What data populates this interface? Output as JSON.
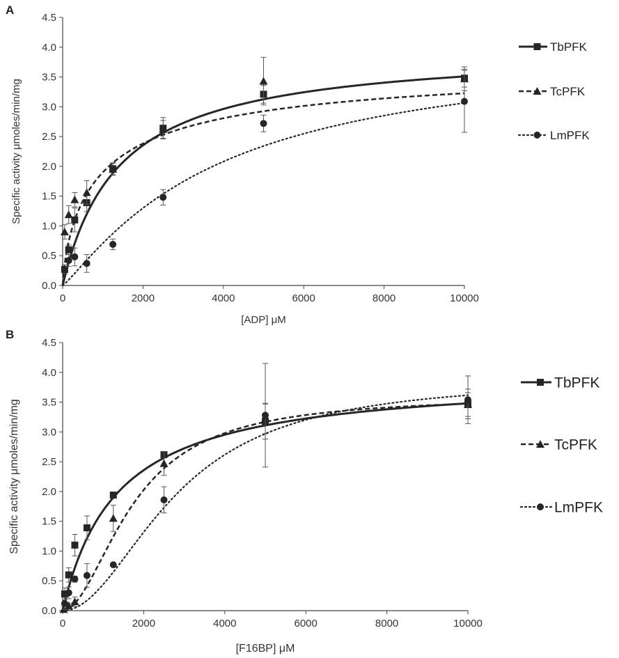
{
  "chart_data": [
    {
      "panel_label": "A",
      "type": "scatter",
      "xlabel": "[ADP]  μM",
      "ylabel": "Specific activity  μmoles/min/mg",
      "xlim": [
        0,
        10000
      ],
      "ylim": [
        0,
        4.5
      ],
      "x_ticks": [
        "0",
        "2000",
        "4000",
        "6000",
        "8000",
        "10000"
      ],
      "y_ticks": [
        "0.0",
        "0.5",
        "1.0",
        "1.5",
        "2.0",
        "2.5",
        "3.0",
        "3.5",
        "4.0",
        "4.5"
      ],
      "grid": false,
      "legend_position": "right",
      "series": [
        {
          "name": "TbPFK",
          "marker": "square",
          "line": "solid",
          "points": [
            {
              "x": 50,
              "y": 0.27,
              "err": 0.08
            },
            {
              "x": 150,
              "y": 0.6,
              "err": 0.08
            },
            {
              "x": 300,
              "y": 1.1,
              "err": 0.2
            },
            {
              "x": 600,
              "y": 1.39,
              "err": 0.15
            },
            {
              "x": 1250,
              "y": 1.96,
              "err": 0.1
            },
            {
              "x": 2500,
              "y": 2.64,
              "err": 0.18
            },
            {
              "x": 5000,
              "y": 3.21,
              "err": 0.15
            },
            {
              "x": 10000,
              "y": 3.48,
              "err": 0.15
            }
          ],
          "fit": {
            "model": "hill",
            "vmax": 4.0,
            "k": 1400,
            "n": 1.0
          }
        },
        {
          "name": "TcPFK",
          "marker": "triangle",
          "line": "dashed",
          "points": [
            {
              "x": 50,
              "y": 0.9,
              "err": 0.12
            },
            {
              "x": 150,
              "y": 1.19,
              "err": 0.15
            },
            {
              "x": 300,
              "y": 1.44,
              "err": 0.12
            },
            {
              "x": 600,
              "y": 1.56,
              "err": 0.2
            },
            {
              "x": 1250,
              "y": 1.95,
              "err": 0.1
            },
            {
              "x": 2500,
              "y": 2.62,
              "err": 0.15
            },
            {
              "x": 5000,
              "y": 3.43,
              "err": 0.4
            },
            {
              "x": 10000,
              "y": 3.47,
              "err": 0.2
            }
          ],
          "fit": {
            "model": "hill",
            "vmax": 3.8,
            "k": 1000,
            "n": 0.75
          }
        },
        {
          "name": "LmPFK",
          "marker": "circle",
          "line": "dotted",
          "points": [
            {
              "x": 150,
              "y": 0.42,
              "err": 0.1
            },
            {
              "x": 300,
              "y": 0.48,
              "err": 0.15
            },
            {
              "x": 600,
              "y": 0.37,
              "err": 0.15
            },
            {
              "x": 1250,
              "y": 0.69,
              "err": 0.09
            },
            {
              "x": 2500,
              "y": 1.48,
              "err": 0.13
            },
            {
              "x": 5000,
              "y": 2.72,
              "err": 0.14
            },
            {
              "x": 10000,
              "y": 3.09,
              "err": 0.52
            }
          ],
          "fit": {
            "model": "hill",
            "vmax": 4.1,
            "k": 3900,
            "n": 1.15
          }
        }
      ]
    },
    {
      "panel_label": "B",
      "type": "scatter",
      "xlabel": "[F16BP] μM",
      "ylabel": "Specific activity  μmoles/min/mg",
      "xlim": [
        0,
        10000
      ],
      "ylim": [
        0,
        4.5
      ],
      "x_ticks": [
        "0",
        "2000",
        "4000",
        "6000",
        "8000",
        "10000"
      ],
      "y_ticks": [
        "0.0",
        "0.5",
        "1.0",
        "1.5",
        "2.0",
        "2.5",
        "3.0",
        "3.5",
        "4.0",
        "4.5"
      ],
      "grid": false,
      "legend_position": "right",
      "series": [
        {
          "name": "TbPFK",
          "marker": "square",
          "line": "solid",
          "points": [
            {
              "x": 50,
              "y": 0.28,
              "err": 0.1
            },
            {
              "x": 150,
              "y": 0.6,
              "err": 0.12
            },
            {
              "x": 300,
              "y": 1.1,
              "err": 0.18
            },
            {
              "x": 600,
              "y": 1.39,
              "err": 0.2
            },
            {
              "x": 1250,
              "y": 1.94,
              "err": 0.05
            },
            {
              "x": 2500,
              "y": 2.62,
              "err": 0.05
            },
            {
              "x": 5000,
              "y": 3.18,
              "err": 0.3
            },
            {
              "x": 10000,
              "y": 3.47,
              "err": 0.25
            }
          ],
          "fit": {
            "model": "hill",
            "vmax": 3.95,
            "k": 1350,
            "n": 1.0
          }
        },
        {
          "name": "TcPFK",
          "marker": "triangle",
          "line": "dashed",
          "points": [
            {
              "x": 25,
              "y": 0.02,
              "err": 0.05
            },
            {
              "x": 150,
              "y": 0.08,
              "err": 0.05
            },
            {
              "x": 300,
              "y": 0.15,
              "err": 0.08
            },
            {
              "x": 1250,
              "y": 1.55,
              "err": 0.22
            },
            {
              "x": 2500,
              "y": 2.47,
              "err": 0.2
            },
            {
              "x": 5000,
              "y": 3.22,
              "err": 0.25
            },
            {
              "x": 10000,
              "y": 3.46,
              "err": 0.2
            }
          ],
          "fit": {
            "model": "hill",
            "vmax": 3.6,
            "k": 1750,
            "n": 1.9
          }
        },
        {
          "name": "LmPFK",
          "marker": "circle",
          "line": "dotted",
          "points": [
            {
              "x": 50,
              "y": 0.12,
              "err": 0.1
            },
            {
              "x": 150,
              "y": 0.3,
              "err": 0.1
            },
            {
              "x": 300,
              "y": 0.53,
              "err": 0.05
            },
            {
              "x": 600,
              "y": 0.59,
              "err": 0.2
            },
            {
              "x": 1250,
              "y": 0.77,
              "err": 0
            },
            {
              "x": 2500,
              "y": 1.86,
              "err": 0.22
            },
            {
              "x": 5000,
              "y": 3.28,
              "err": 0.87
            },
            {
              "x": 10000,
              "y": 3.54,
              "err": 0.4
            }
          ],
          "fit": {
            "model": "hill",
            "vmax": 3.9,
            "k": 2800,
            "n": 2.0
          }
        }
      ]
    }
  ]
}
